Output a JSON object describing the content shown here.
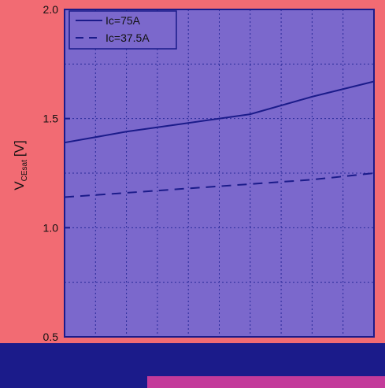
{
  "colors": {
    "background": "#f26b73",
    "plot_area": "#7b68cc",
    "axis": "#1b1b8a",
    "line": "#1b1b8a",
    "grid": "#2a2a9a"
  },
  "chart_data": {
    "type": "line",
    "title": "",
    "ylabel_main": "V",
    "ylabel_sub": "CEsat",
    "ylabel_unit": "[V]",
    "xlabel": "",
    "ylim": [
      0.5,
      2.0
    ],
    "xlim": [
      25,
      150
    ],
    "y_ticks": [
      "0.5",
      "1.0",
      "1.5",
      "2.0"
    ],
    "x_ticks": [],
    "grid": true,
    "legend_position": "top-left",
    "x": [
      25,
      50,
      75,
      100,
      125,
      150
    ],
    "series": [
      {
        "name": "Ic=75A",
        "style": "solid",
        "values": [
          1.39,
          1.44,
          1.48,
          1.52,
          1.6,
          1.67
        ]
      },
      {
        "name": "Ic=37.5A",
        "style": "dashed",
        "values": [
          1.14,
          1.16,
          1.18,
          1.2,
          1.22,
          1.25
        ]
      }
    ]
  }
}
